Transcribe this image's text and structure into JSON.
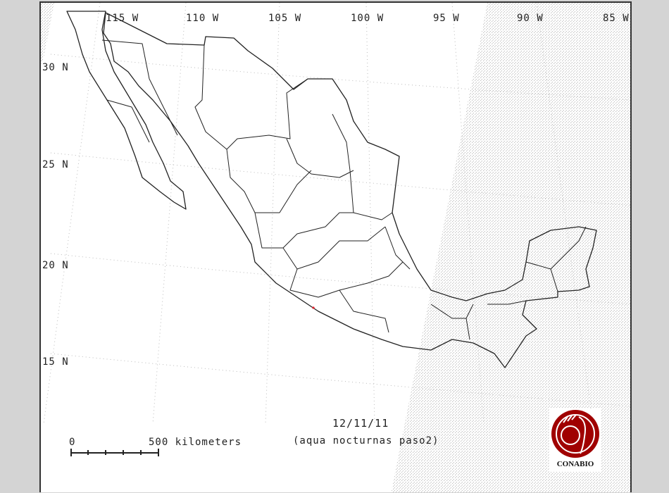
{
  "map": {
    "longitude_labels": [
      "115 W",
      "110 W",
      "105 W",
      "100 W",
      "95 W",
      "90 W",
      "85 W"
    ],
    "latitude_labels": [
      "30 N",
      "25 N",
      "20 N",
      "15 N"
    ],
    "date": "12/11/11",
    "subtitle": "(aqua nocturnas paso2)",
    "scale_bar": {
      "start_label": "0",
      "end_label": "500 kilometers"
    },
    "logo_text": "CONABIO",
    "colors": {
      "background": "#d4d4d4",
      "outline": "#222222",
      "no_data_hatch": "#c8c8c8",
      "hotspot": "#e0202a",
      "logo": "#a00000"
    },
    "hotspots": [
      {
        "lat": 17.6,
        "lon": -101.5
      }
    ]
  }
}
